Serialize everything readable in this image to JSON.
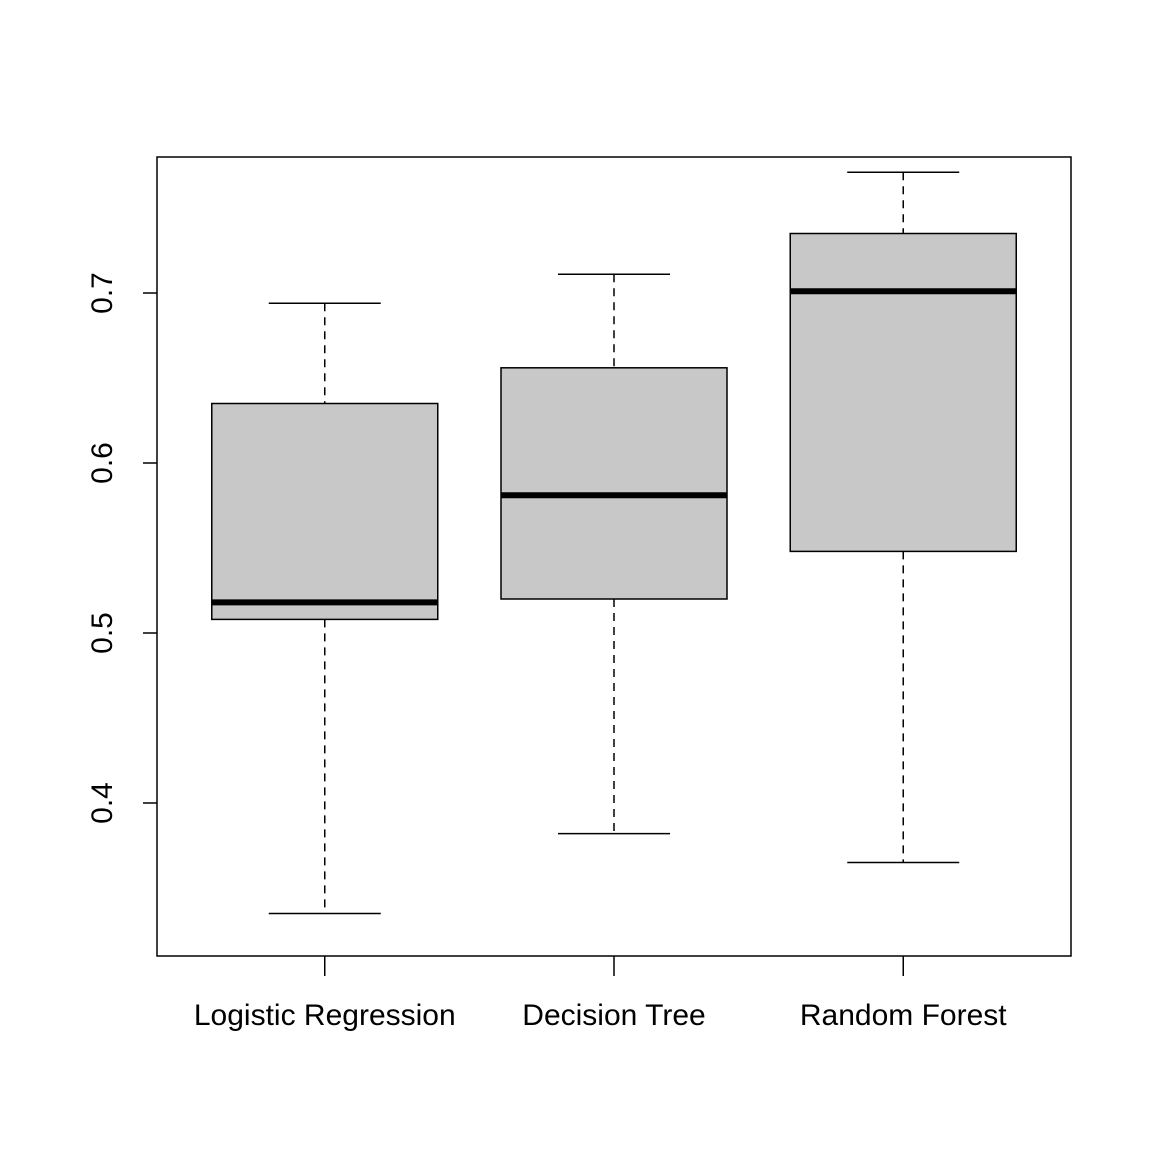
{
  "chart_data": {
    "type": "boxplot",
    "title": "",
    "xlabel": "",
    "ylabel": "",
    "categories": [
      "Logistic Regression",
      "Decision Tree",
      "Random Forest"
    ],
    "boxes": [
      {
        "category": "Logistic Regression",
        "min": 0.335,
        "q1": 0.508,
        "median": 0.518,
        "q3": 0.635,
        "max": 0.694
      },
      {
        "category": "Decision Tree",
        "min": 0.382,
        "q1": 0.52,
        "median": 0.581,
        "q3": 0.656,
        "max": 0.711
      },
      {
        "category": "Random Forest",
        "min": 0.365,
        "q1": 0.548,
        "median": 0.701,
        "q3": 0.735,
        "max": 0.771
      }
    ],
    "ylim": [
      0.31,
      0.78
    ],
    "yticks": [
      0.4,
      0.5,
      0.6,
      0.7
    ],
    "ytick_labels": [
      "0.4",
      "0.5",
      "0.6",
      "0.7"
    ],
    "box_fill": "#c8c8c8",
    "grid": false,
    "legend": "none"
  }
}
